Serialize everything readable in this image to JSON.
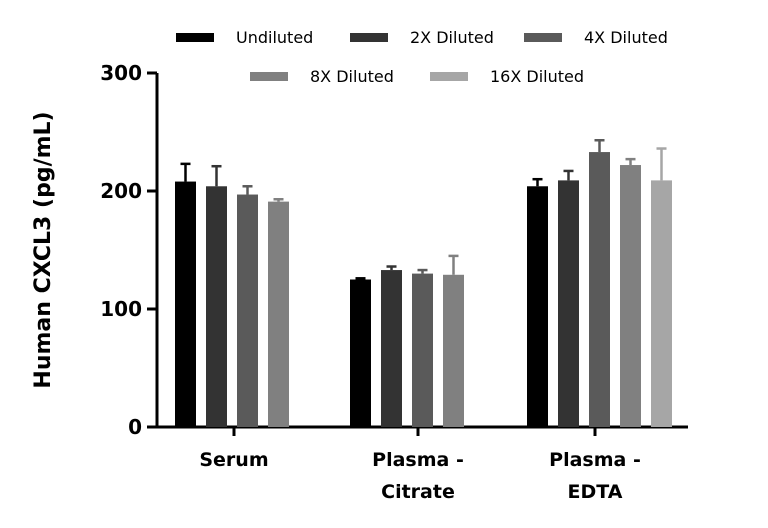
{
  "chart_data": {
    "type": "bar",
    "title": "",
    "xlabel": "",
    "ylabel": "Human CXCL3 (pg/mL)",
    "ylim": [
      0,
      300
    ],
    "yticks": [
      0,
      100,
      200,
      300
    ],
    "categories": [
      [
        "Serum"
      ],
      [
        "Plasma -",
        "Citrate"
      ],
      [
        "Plasma -",
        "EDTA"
      ]
    ],
    "series": [
      {
        "name": "Undiluted",
        "color": "#000000",
        "values": [
          208,
          125,
          204
        ],
        "errors": [
          15,
          1,
          6
        ]
      },
      {
        "name": "2X Diluted",
        "color": "#333333",
        "values": [
          204,
          133,
          209
        ],
        "errors": [
          17,
          3,
          8
        ]
      },
      {
        "name": "4X Diluted",
        "color": "#5a5a5a",
        "values": [
          197,
          130,
          233
        ],
        "errors": [
          7,
          3,
          10
        ]
      },
      {
        "name": "8X Diluted",
        "color": "#808080",
        "values": [
          191,
          129,
          222
        ],
        "errors": [
          2,
          16,
          5
        ]
      },
      {
        "name": "16X Diluted",
        "color": "#a6a6a6",
        "values": [
          null,
          null,
          209
        ],
        "errors": [
          null,
          null,
          27
        ]
      }
    ],
    "legend": "top",
    "grid": false
  }
}
